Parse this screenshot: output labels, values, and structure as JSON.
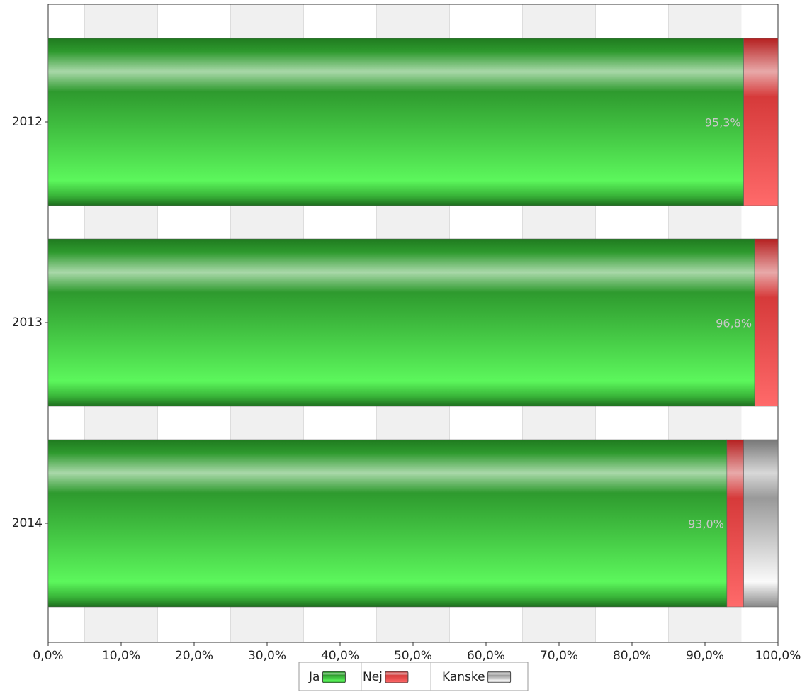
{
  "chart_data": {
    "type": "stacked-bar-horizontal",
    "categories": [
      "2012",
      "2013",
      "2014"
    ],
    "series": [
      {
        "name": "Ja",
        "color": "#3fd23f",
        "values": [
          95.3,
          96.8,
          93.0
        ],
        "value_labels": [
          "95,3%",
          "96,8%",
          "93,0%"
        ]
      },
      {
        "name": "Nej",
        "color": "#e23b3b",
        "values": [
          4.7,
          3.2,
          2.3
        ]
      },
      {
        "name": "Kanske",
        "color": "#b4b4b4",
        "values": [
          null,
          null,
          4.7
        ]
      }
    ],
    "xlim": [
      0,
      100
    ],
    "xticks": [
      {
        "value": 0,
        "label": "0,0%"
      },
      {
        "value": 10,
        "label": "10,0%"
      },
      {
        "value": 20,
        "label": "20,0%"
      },
      {
        "value": 30,
        "label": "30,0%"
      },
      {
        "value": 40,
        "label": "40,0%"
      },
      {
        "value": 50,
        "label": "50,0%"
      },
      {
        "value": 60,
        "label": "60,0%"
      },
      {
        "value": 70,
        "label": "70,0%"
      },
      {
        "value": 80,
        "label": "80,0%"
      },
      {
        "value": 90,
        "label": "90,0%"
      },
      {
        "value": 100,
        "label": "100,0%"
      }
    ],
    "legend": "bottom"
  }
}
